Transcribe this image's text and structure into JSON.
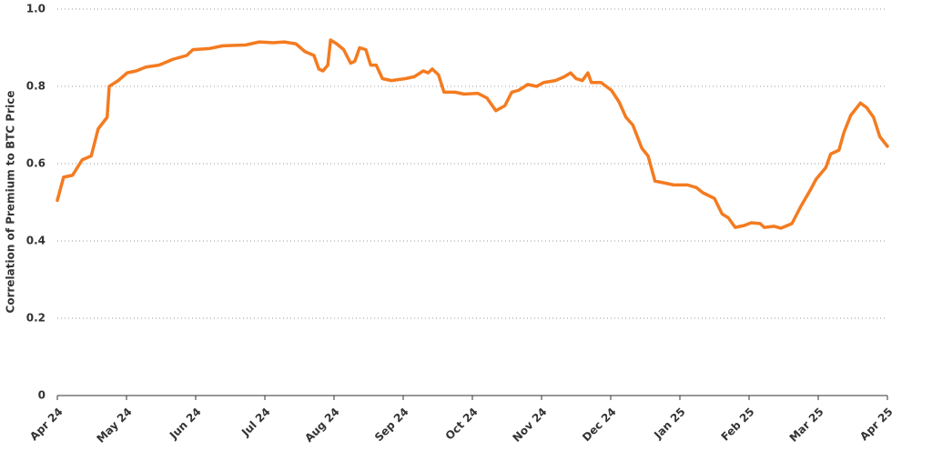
{
  "chart_data": {
    "type": "line",
    "y_label": "Correlation of Premium to BTC Price",
    "xlim": [
      0,
      12
    ],
    "xticks": [
      {
        "value": 0,
        "label": "Apr 24"
      },
      {
        "value": 1,
        "label": "May 24"
      },
      {
        "value": 2,
        "label": "Jun 24"
      },
      {
        "value": 3,
        "label": "Jul 24"
      },
      {
        "value": 4,
        "label": "Aug 24"
      },
      {
        "value": 5,
        "label": "Sep 24"
      },
      {
        "value": 6,
        "label": "Oct 24"
      },
      {
        "value": 7,
        "label": "Nov 24"
      },
      {
        "value": 8,
        "label": "Dec 24"
      },
      {
        "value": 9,
        "label": "Jan 25"
      },
      {
        "value": 10,
        "label": "Feb 25"
      },
      {
        "value": 11,
        "label": "Mar 25"
      },
      {
        "value": 12,
        "label": "Apr 25"
      }
    ],
    "ylim": [
      0,
      1
    ],
    "yticks": [
      0,
      0.2,
      0.4,
      0.6,
      0.8,
      {
        "value": 1,
        "label": "1.0"
      }
    ],
    "grid": true,
    "color": "#f47b20",
    "x": [
      0,
      0.09,
      0.22,
      0.36,
      0.49,
      0.59,
      0.72,
      0.75,
      0.88,
      1.01,
      1.14,
      1.28,
      1.47,
      1.67,
      1.87,
      1.96,
      2.2,
      2.39,
      2.72,
      2.92,
      3.12,
      3.28,
      3.45,
      3.58,
      3.71,
      3.78,
      3.84,
      3.91,
      3.95,
      4.04,
      4.14,
      4.24,
      4.3,
      4.37,
      4.46,
      4.53,
      4.61,
      4.7,
      4.83,
      5.03,
      5.16,
      5.29,
      5.36,
      5.42,
      5.51,
      5.59,
      5.75,
      5.88,
      6.08,
      6.21,
      6.34,
      6.47,
      6.57,
      6.67,
      6.8,
      6.93,
      7.03,
      7.2,
      7.33,
      7.42,
      7.5,
      7.59,
      7.67,
      7.72,
      7.86,
      8.01,
      8.12,
      8.22,
      8.32,
      8.45,
      8.54,
      8.64,
      8.78,
      8.91,
      9.11,
      9.24,
      9.33,
      9.5,
      9.61,
      9.7,
      9.8,
      9.93,
      10.03,
      10.16,
      10.22,
      10.36,
      10.46,
      10.62,
      10.75,
      10.88,
      10.97,
      11.11,
      11.18,
      11.3,
      11.37,
      11.47,
      11.61,
      11.7,
      11.8,
      11.89,
      12
    ],
    "values": [
      0.505,
      0.565,
      0.57,
      0.61,
      0.62,
      0.69,
      0.72,
      0.8,
      0.815,
      0.835,
      0.84,
      0.85,
      0.855,
      0.87,
      0.88,
      0.895,
      0.898,
      0.905,
      0.907,
      0.915,
      0.913,
      0.915,
      0.91,
      0.89,
      0.88,
      0.845,
      0.84,
      0.855,
      0.92,
      0.91,
      0.895,
      0.86,
      0.865,
      0.9,
      0.895,
      0.855,
      0.855,
      0.82,
      0.815,
      0.82,
      0.825,
      0.84,
      0.835,
      0.845,
      0.83,
      0.785,
      0.785,
      0.78,
      0.782,
      0.77,
      0.737,
      0.75,
      0.785,
      0.79,
      0.805,
      0.8,
      0.81,
      0.815,
      0.825,
      0.835,
      0.82,
      0.815,
      0.835,
      0.81,
      0.81,
      0.79,
      0.76,
      0.72,
      0.7,
      0.64,
      0.62,
      0.555,
      0.55,
      0.545,
      0.545,
      0.538,
      0.525,
      0.51,
      0.47,
      0.46,
      0.435,
      0.44,
      0.447,
      0.445,
      0.435,
      0.438,
      0.433,
      0.445,
      0.49,
      0.53,
      0.56,
      0.59,
      0.625,
      0.635,
      0.68,
      0.725,
      0.757,
      0.745,
      0.72,
      0.67,
      0.645
    ]
  }
}
